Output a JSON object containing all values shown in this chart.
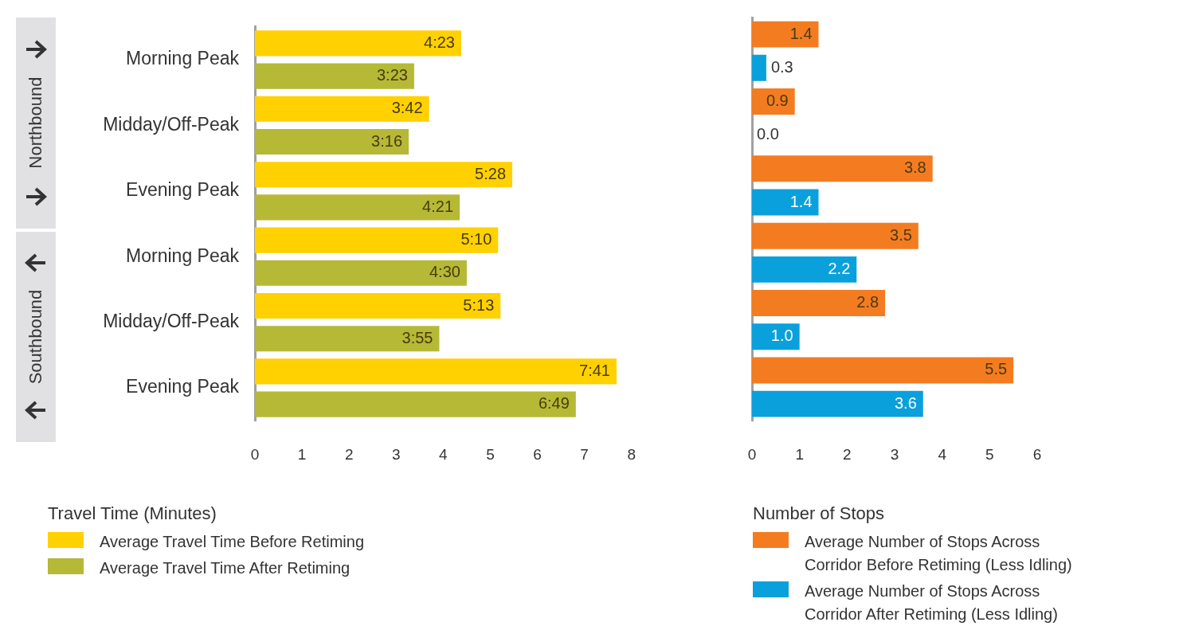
{
  "chart_data": [
    {
      "type": "bar",
      "orientation": "horizontal",
      "legend_title": "Travel Time (Minutes)",
      "legend": "bottom",
      "grid": false,
      "annotations": [
        "Northbound",
        "Southbound"
      ],
      "categories": [
        "Morning Peak",
        "Midday/Off-Peak",
        "Evening Peak",
        "Morning Peak",
        "Midday/Off-Peak",
        "Evening Peak"
      ],
      "xlim": [
        0,
        8
      ],
      "xticks": [
        0,
        1,
        2,
        3,
        4,
        5,
        6,
        7,
        8
      ],
      "series": [
        {
          "name": "Average Travel Time Before Retiming",
          "color": "#ffd100",
          "values": [
            4.383,
            3.7,
            5.467,
            5.167,
            5.217,
            7.683
          ],
          "value_labels": [
            "4:23",
            "3:42",
            "5:28",
            "5:10",
            "5:13",
            "7:41"
          ]
        },
        {
          "name": "Average Travel Time After Retiming",
          "color": "#b5b935",
          "values": [
            3.383,
            3.267,
            4.35,
            4.5,
            3.917,
            6.817
          ],
          "value_labels": [
            "3:23",
            "3:16",
            "4:21",
            "4:30",
            "3:55",
            "6:49"
          ]
        }
      ]
    },
    {
      "type": "bar",
      "orientation": "horizontal",
      "legend_title": "Number of Stops",
      "legend": "bottom",
      "grid": false,
      "tick_labels": "x",
      "categories": [
        null,
        null,
        null,
        null,
        null,
        null
      ],
      "xlim": [
        0,
        6
      ],
      "xticks": [
        0,
        1,
        2,
        3,
        4,
        5,
        6
      ],
      "series": [
        {
          "name": "Average Number of Stops Across Corridor Before Retiming (Less Idling)",
          "color": "#f47c20",
          "values": [
            1.4,
            0.9,
            3.8,
            3.5,
            2.8,
            5.5
          ],
          "value_labels": [
            "1.4",
            "0.9",
            "3.8",
            "3.5",
            "2.8",
            "5.5"
          ]
        },
        {
          "name": "Average Number of Stops Across Corridor After Retiming (Less Idling)",
          "color": "#0aa0dc",
          "values": [
            0.3,
            0.0,
            1.4,
            2.2,
            1.0,
            3.6
          ],
          "value_labels": [
            "0.3",
            "0.0",
            "1.4",
            "2.2",
            "1.0",
            "3.6"
          ]
        }
      ]
    }
  ]
}
